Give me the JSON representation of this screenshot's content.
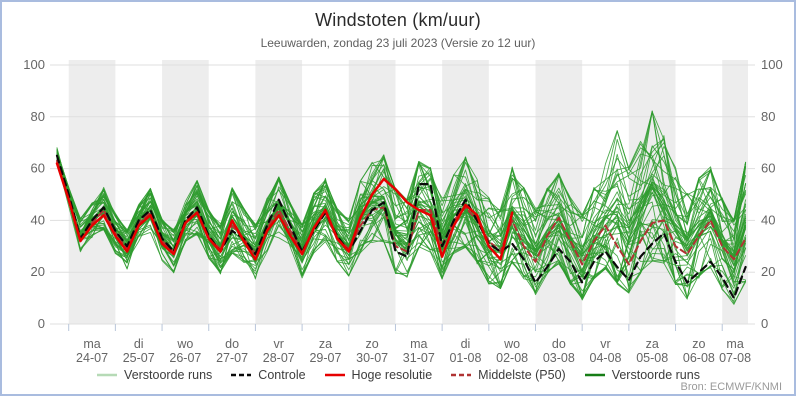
{
  "header": {
    "title": "Windstoten (km/uur)",
    "subtitle": "Leeuwarden, zondag 23 juli 2023 (Versie zo 12 uur)"
  },
  "source": "Bron: ECMWF/KNMI",
  "legend": [
    {
      "label": "Verstoorde runs",
      "color": "#b6dab6",
      "dash": false
    },
    {
      "label": "Controle",
      "color": "#0a0a0a",
      "dash": true
    },
    {
      "label": "Hoge resolutie",
      "color": "#e60000",
      "dash": false
    },
    {
      "label": "Middelste (P50)",
      "color": "#b03333",
      "dash": true
    },
    {
      "label": "Verstoorde runs",
      "color": "#177d17",
      "dash": false
    }
  ],
  "colors": {
    "panel_border": "#a9bcdf",
    "day_band": "#ededed",
    "gridline": "#dfdfdf",
    "axis_text": "#666666",
    "tick": "#b9c6da",
    "ensemble_line": "#2e9b2e",
    "control_line": "#0a0a0a",
    "hres_line": "#e60000",
    "p50_line": "#b03333"
  },
  "chart_data": {
    "type": "line",
    "title": "Windstoten (km/uur)",
    "subtitle": "Leeuwarden, zondag 23 juli 2023 (Versie zo 12 uur)",
    "ylabel": "km/uur",
    "ylim": [
      0,
      100
    ],
    "yticks": [
      0,
      20,
      40,
      60,
      80,
      100
    ],
    "grid": true,
    "alternating_day_bands": true,
    "legend_position": "bottom",
    "x_axis": {
      "start_hours": -6,
      "end_hours": 348,
      "step_hours": 6,
      "note_first_point": "run start zo 23-07 ~18:00",
      "day_labels": [
        {
          "dow": "ma",
          "date": "24-07"
        },
        {
          "dow": "di",
          "date": "25-07"
        },
        {
          "dow": "wo",
          "date": "26-07"
        },
        {
          "dow": "do",
          "date": "27-07"
        },
        {
          "dow": "vr",
          "date": "28-07"
        },
        {
          "dow": "za",
          "date": "29-07"
        },
        {
          "dow": "zo",
          "date": "30-07"
        },
        {
          "dow": "ma",
          "date": "31-07"
        },
        {
          "dow": "di",
          "date": "01-08"
        },
        {
          "dow": "wo",
          "date": "02-08"
        },
        {
          "dow": "do",
          "date": "03-08"
        },
        {
          "dow": "vr",
          "date": "04-08"
        },
        {
          "dow": "za",
          "date": "05-08"
        },
        {
          "dow": "zo",
          "date": "06-08"
        },
        {
          "dow": "ma",
          "date": "07-08"
        }
      ]
    },
    "series": [
      {
        "name": "Controle",
        "role": "control",
        "color": "#0a0a0a",
        "dash": [
          7,
          5
        ],
        "width": 2.2,
        "values": [
          65,
          50,
          33,
          40,
          45,
          36,
          30,
          40,
          44,
          33,
          28,
          40,
          45,
          34,
          28,
          36,
          33,
          27,
          38,
          48,
          38,
          28,
          36,
          43,
          34,
          28,
          36,
          44,
          47,
          28,
          26,
          54,
          54,
          30,
          40,
          48,
          40,
          31,
          28,
          31,
          25,
          16,
          22,
          29,
          24,
          16,
          24,
          28,
          22,
          17,
          26,
          31,
          35,
          24,
          16,
          20,
          24,
          18,
          10,
          22
        ]
      },
      {
        "name": "Hoge resolutie",
        "role": "hres",
        "color": "#e60000",
        "dash": null,
        "width": 2.5,
        "end_hours": 228,
        "values": [
          62,
          48,
          32,
          38,
          42,
          34,
          28,
          38,
          42,
          31,
          27,
          39,
          43,
          33,
          28,
          40,
          32,
          25,
          36,
          42,
          34,
          27,
          37,
          44,
          33,
          28,
          41,
          50,
          56,
          52,
          47,
          44,
          42,
          26,
          38,
          46,
          42,
          30,
          25,
          43
        ]
      },
      {
        "name": "Middelste (P50)",
        "role": "p50",
        "color": "#b03333",
        "dash": [
          6,
          4
        ],
        "width": 2,
        "values": [
          63,
          48,
          33,
          39,
          44,
          35,
          29,
          39,
          43,
          32,
          28,
          40,
          43,
          33,
          29,
          38,
          33,
          27,
          37,
          44,
          36,
          28,
          37,
          43,
          33,
          29,
          38,
          44,
          45,
          30,
          28,
          44,
          44,
          30,
          40,
          45,
          40,
          32,
          28,
          40,
          30,
          24,
          34,
          41,
          32,
          23,
          32,
          38,
          30,
          23,
          32,
          39,
          40,
          30,
          27,
          34,
          40,
          30,
          25,
          33
        ]
      },
      {
        "name": "Verstoorde runs",
        "role": "ensemble",
        "color": "#2e9b2e",
        "n_members": 50,
        "width": 0.9,
        "band_min": [
          59,
          44,
          28,
          34,
          37,
          28,
          21,
          32,
          35,
          25,
          20,
          32,
          35,
          26,
          20,
          28,
          24,
          18,
          28,
          34,
          26,
          18,
          28,
          32,
          24,
          18,
          28,
          32,
          32,
          20,
          18,
          30,
          28,
          18,
          28,
          30,
          24,
          16,
          14,
          24,
          18,
          12,
          20,
          24,
          16,
          10,
          18,
          22,
          16,
          12,
          20,
          24,
          24,
          16,
          10,
          18,
          22,
          14,
          8,
          17
        ],
        "band_max": [
          71,
          54,
          40,
          46,
          52,
          42,
          36,
          46,
          52,
          40,
          36,
          48,
          55,
          44,
          38,
          52,
          44,
          38,
          48,
          56,
          46,
          38,
          50,
          56,
          44,
          40,
          55,
          62,
          65,
          52,
          48,
          62,
          60,
          48,
          58,
          64,
          56,
          48,
          44,
          60,
          52,
          44,
          52,
          58,
          48,
          42,
          52,
          62,
          75,
          60,
          70,
          82,
          72,
          60,
          50,
          56,
          60,
          48,
          40,
          62
        ]
      }
    ],
    "source": "Bron: ECMWF/KNMI"
  }
}
